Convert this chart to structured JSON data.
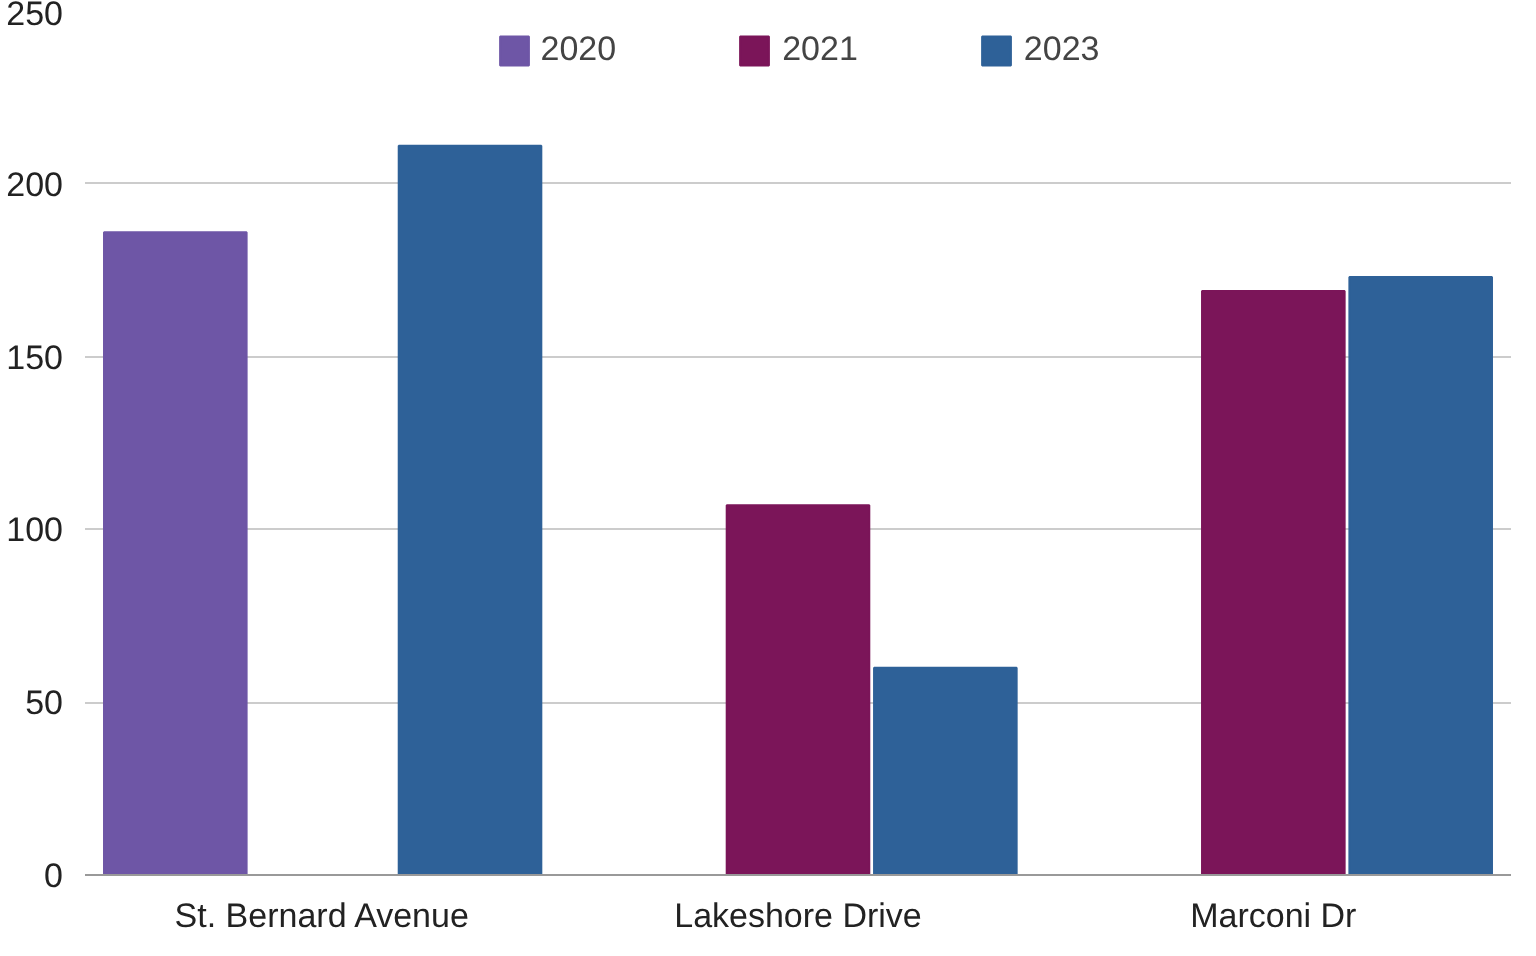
{
  "chart_data": {
    "type": "bar",
    "categories": [
      "St. Bernard Avenue",
      "Lakeshore Drive",
      "Marconi Dr"
    ],
    "series": [
      {
        "name": "2020",
        "color": "#6e56a6",
        "values": [
          186,
          null,
          null
        ]
      },
      {
        "name": "2021",
        "color": "#7b1559",
        "values": [
          null,
          107,
          169
        ]
      },
      {
        "name": "2023",
        "color": "#2e6198",
        "values": [
          211,
          60,
          173
        ]
      }
    ],
    "ylim": [
      0,
      250
    ],
    "yticks": [
      0,
      50,
      100,
      150,
      200,
      250
    ],
    "grid": "y",
    "legend": "top"
  }
}
